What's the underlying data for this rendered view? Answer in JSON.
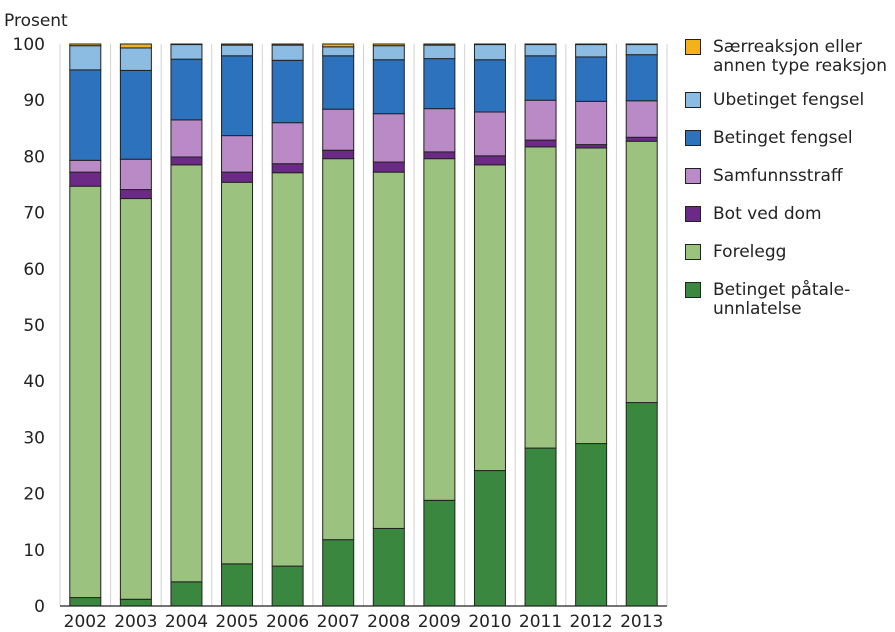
{
  "chart_data": {
    "type": "bar",
    "stacked": true,
    "ylabel": "Prosent",
    "ylim": [
      0,
      100
    ],
    "yticks": [
      0,
      10,
      20,
      30,
      40,
      50,
      60,
      70,
      80,
      90,
      100
    ],
    "grid": "vertical",
    "legend_position": "right",
    "categories": [
      "2002",
      "2003",
      "2004",
      "2005",
      "2006",
      "2007",
      "2008",
      "2009",
      "2010",
      "2011",
      "2012",
      "2013"
    ],
    "series": [
      {
        "name": "Betinget påtale-\nunnlatelse",
        "color": "#3a8740",
        "values": [
          1.5,
          1.2,
          4.3,
          7.5,
          7.1,
          11.8,
          13.8,
          18.8,
          24.1,
          28.1,
          28.9,
          36.2
        ]
      },
      {
        "name": "Forelegg",
        "color": "#9cc27f",
        "values": [
          73.2,
          71.3,
          74.2,
          67.9,
          70.0,
          67.8,
          63.4,
          60.8,
          54.4,
          53.6,
          52.6,
          46.5
        ]
      },
      {
        "name": "Bot ved dom",
        "color": "#6b2a85",
        "values": [
          2.5,
          1.6,
          1.4,
          1.8,
          1.6,
          1.5,
          1.8,
          1.2,
          1.6,
          1.2,
          0.6,
          0.7
        ]
      },
      {
        "name": "Samfunnsstraff",
        "color": "#b98ac5",
        "values": [
          2.1,
          5.4,
          6.6,
          6.5,
          7.3,
          7.3,
          8.6,
          7.7,
          7.8,
          7.1,
          7.7,
          6.5
        ]
      },
      {
        "name": "Betinget fengsel",
        "color": "#2d72bd",
        "values": [
          16.1,
          15.8,
          10.8,
          14.2,
          11.1,
          9.5,
          9.6,
          8.9,
          9.3,
          7.9,
          7.9,
          8.2
        ]
      },
      {
        "name": "Ubetinget fengsel",
        "color": "#8dbce3",
        "values": [
          4.3,
          4.0,
          2.6,
          1.9,
          2.7,
          1.6,
          2.5,
          2.4,
          2.7,
          2.0,
          2.2,
          1.8
        ]
      },
      {
        "name": "Særreaksjon eller\nannen type reaksjon",
        "color": "#f2b21b",
        "values": [
          0.3,
          0.7,
          0.1,
          0.2,
          0.2,
          0.5,
          0.3,
          0.2,
          0.1,
          0.1,
          0.1,
          0.1
        ]
      }
    ]
  }
}
